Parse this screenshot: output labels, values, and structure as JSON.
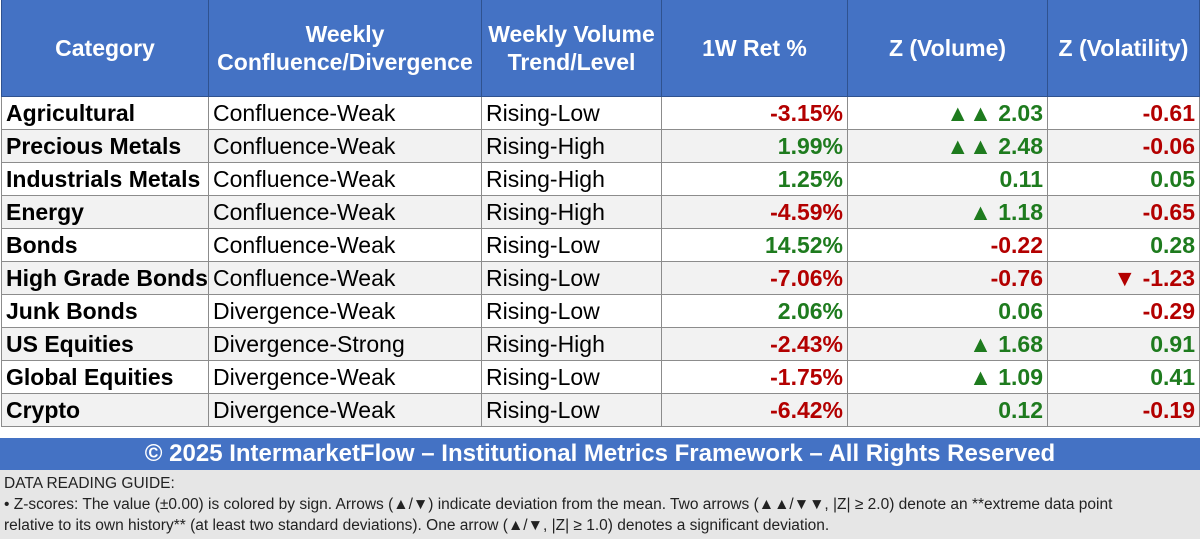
{
  "chart_data": {
    "type": "table",
    "title": "",
    "columns": [
      "Category",
      "Weekly Confluence/Divergence",
      "Weekly Volume Trend/Level",
      "1W Ret %",
      "Z (Volume)",
      "Z (Volatility)"
    ],
    "header_lines": [
      [
        "Category"
      ],
      [
        "Weekly",
        "Confluence/Divergence"
      ],
      [
        "Weekly Volume",
        "Trend/Level"
      ],
      [
        "1W Ret %"
      ],
      [
        "Z (Volume)"
      ],
      [
        "Z (Volatility)"
      ]
    ],
    "rows": [
      {
        "category": "Agricultural",
        "signal": "Confluence-Weak",
        "volume": "Rising-Low",
        "ret": "-3.15%",
        "zvol": "▲▲ 2.03",
        "zvolat": "-0.61"
      },
      {
        "category": "Precious Metals",
        "signal": "Confluence-Weak",
        "volume": "Rising-High",
        "ret": "1.99%",
        "zvol": "▲▲ 2.48",
        "zvolat": "-0.06"
      },
      {
        "category": "Industrials Metals",
        "signal": "Confluence-Weak",
        "volume": "Rising-High",
        "ret": "1.25%",
        "zvol": "0.11",
        "zvolat": "0.05"
      },
      {
        "category": "Energy",
        "signal": "Confluence-Weak",
        "volume": "Rising-High",
        "ret": "-4.59%",
        "zvol": "▲ 1.18",
        "zvolat": "-0.65"
      },
      {
        "category": "Bonds",
        "signal": "Confluence-Weak",
        "volume": "Rising-Low",
        "ret": "14.52%",
        "zvol": "-0.22",
        "zvolat": "0.28"
      },
      {
        "category": "High Grade Bonds",
        "signal": "Confluence-Weak",
        "volume": "Rising-Low",
        "ret": "-7.06%",
        "zvol": "-0.76",
        "zvolat": "▼ -1.23"
      },
      {
        "category": "Junk Bonds",
        "signal": "Divergence-Weak",
        "volume": "Rising-Low",
        "ret": "2.06%",
        "zvol": "0.06",
        "zvolat": "-0.29"
      },
      {
        "category": "US Equities",
        "signal": "Divergence-Strong",
        "volume": "Rising-High",
        "ret": "-2.43%",
        "zvol": "▲ 1.68",
        "zvolat": "0.91"
      },
      {
        "category": "Global Equities",
        "signal": "Divergence-Weak",
        "volume": "Rising-Low",
        "ret": "-1.75%",
        "zvol": "▲ 1.09",
        "zvolat": "0.41"
      },
      {
        "category": "Crypto",
        "signal": "Divergence-Weak",
        "volume": "Rising-Low",
        "ret": "-6.42%",
        "zvol": "0.12",
        "zvolat": "-0.19"
      }
    ]
  },
  "colors": {
    "header_bg": "#4472c4",
    "positive": "#1e7b1e",
    "negative": "#b30000",
    "stripe": "#f2f2f2",
    "guide_bg": "#e6e6e6"
  },
  "footer": {
    "text": "© 2025 IntermarketFlow – Institutional Metrics Framework – All Rights Reserved"
  },
  "guide": {
    "title": "DATA READING GUIDE:",
    "line1": " • Z-scores: The value (±0.00) is colored by sign. Arrows (▲/▼) indicate deviation from the mean. Two arrows (▲▲/▼▼, |Z| ≥ 2.0) denote an **extreme data point",
    "line2": "relative to its own history** (at least two standard deviations). One arrow (▲/▼, |Z| ≥ 1.0) denotes a significant deviation."
  }
}
